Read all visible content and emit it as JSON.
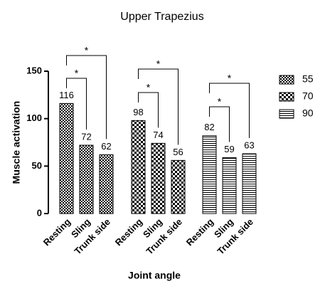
{
  "chart_data": {
    "type": "bar",
    "title": "Upper Trapezius",
    "x_label": "Joint angle",
    "y_label": "Muscle activation",
    "categories": [
      "Resting",
      "Sling",
      "Trunk side"
    ],
    "series": [
      {
        "name": "55",
        "color": "#000000",
        "values": [
          116,
          72,
          62
        ]
      },
      {
        "name": "70",
        "color": "#000000",
        "values": [
          98,
          74,
          56
        ]
      },
      {
        "name": "90",
        "color": "#000000",
        "values": [
          82,
          59,
          63
        ]
      }
    ],
    "ylim": [
      0,
      150
    ],
    "yticks": [
      0,
      50,
      100,
      150
    ],
    "annotations": [
      "*",
      "*",
      "*",
      "*",
      "*",
      "*"
    ],
    "legend": "right"
  }
}
